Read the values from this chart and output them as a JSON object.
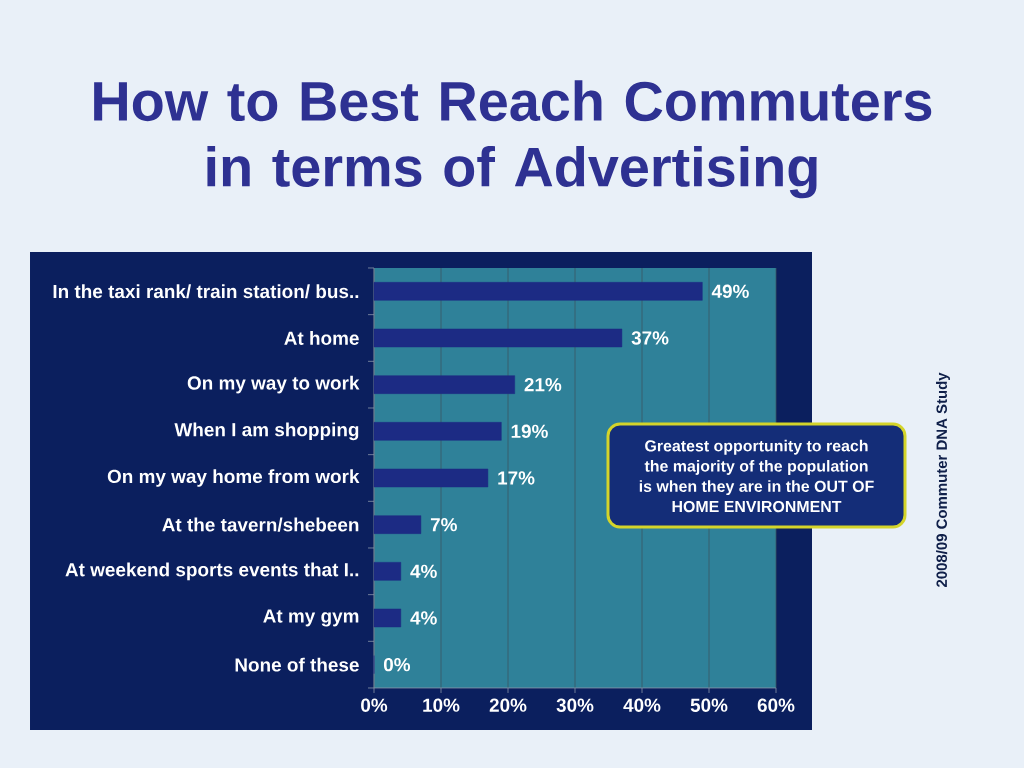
{
  "chart_data": {
    "type": "bar",
    "orientation": "horizontal",
    "title": "How to Best Reach Commuters in terms of Advertising",
    "categories": [
      "In the taxi rank/ train station/ bus..",
      "At home",
      "On my way to work",
      "When I am shopping",
      "On my way home from work",
      "At the tavern/shebeen",
      "At weekend sports events that I..",
      "At my gym",
      "None of these"
    ],
    "values": [
      49,
      37,
      21,
      19,
      17,
      7,
      4,
      4,
      0
    ],
    "value_labels": [
      "49%",
      "37%",
      "21%",
      "19%",
      "17%",
      "7%",
      "4%",
      "4%",
      "0%"
    ],
    "color": "#1c2b84",
    "xlim": [
      0,
      60
    ],
    "xticks": [
      {
        "value": 0,
        "label": "0%"
      },
      {
        "value": 10,
        "label": "10%"
      },
      {
        "value": 20,
        "label": "20%"
      },
      {
        "value": 30,
        "label": "30%"
      },
      {
        "value": 40,
        "label": "40%"
      },
      {
        "value": 50,
        "label": "50%"
      },
      {
        "value": 60,
        "label": "60%"
      }
    ],
    "grid": "x",
    "annotations": [
      "Greatest opportunity to reach the majority of the population is when they are in the OUT OF HOME ENVIRONMENT",
      "2008/09 Commuter DNA Study"
    ]
  }
}
